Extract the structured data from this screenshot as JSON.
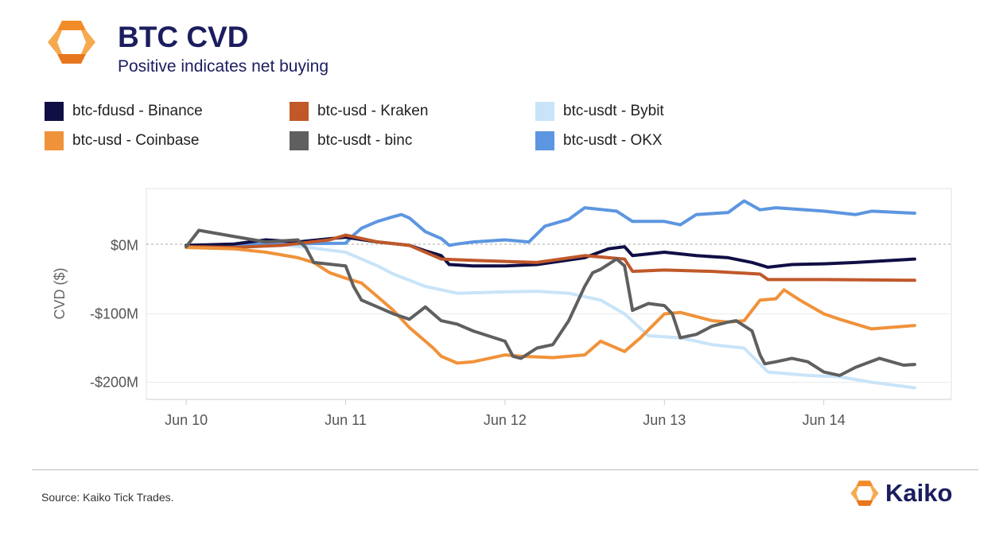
{
  "header": {
    "title": "BTC CVD",
    "subtitle": "Positive indicates net buying"
  },
  "colors": {
    "brand_orange": "#f28c28",
    "brand_navy": "#1b1d5e",
    "zero_line": "#aaaaaa",
    "grid": "#ececec"
  },
  "legend": [
    {
      "label": "btc-fdusd - Binance",
      "color": "#0f0e45"
    },
    {
      "label": "btc-usd - Kraken",
      "color": "#c0582a"
    },
    {
      "label": "btc-usdt - Bybit",
      "color": "#c9e4f8"
    },
    {
      "label": "btc-usd - Coinbase",
      "color": "#f0923a"
    },
    {
      "label": "btc-usdt - binc",
      "color": "#5f5f5f"
    },
    {
      "label": "btc-usdt - OKX",
      "color": "#5d96e0"
    }
  ],
  "chart_data": {
    "type": "line",
    "title": "BTC CVD",
    "subtitle": "Positive indicates net buying",
    "xlabel": "",
    "ylabel": "CVD ($)",
    "x_tick_labels": [
      "Jun 10",
      "Jun 11",
      "Jun 12",
      "Jun 13",
      "Jun 14"
    ],
    "x_tick_values": [
      0,
      1,
      2,
      3,
      4
    ],
    "y_tick_labels": [
      "$0M",
      "-$100M",
      "-$200M"
    ],
    "y_tick_values": [
      0,
      -100,
      -200
    ],
    "xlim": [
      -0.25,
      4.8
    ],
    "ylim": [
      -225,
      83
    ],
    "zero_line": "dashed",
    "grid": "horizontal",
    "units": "USD millions",
    "x_axis": "days from Jun 10",
    "series": [
      {
        "name": "btc-usdt - Bybit",
        "color": "#c9e4f8",
        "x": [
          0,
          0.2,
          0.4,
          0.6,
          0.8,
          1.0,
          1.2,
          1.3,
          1.5,
          1.7,
          2.0,
          2.2,
          2.4,
          2.6,
          2.75,
          2.9,
          3.1,
          3.3,
          3.5,
          3.65,
          3.9,
          4.1,
          4.3,
          4.57
        ],
        "y": [
          -3,
          0,
          3,
          1,
          -4,
          -10,
          -30,
          -42,
          -60,
          -70,
          -68,
          -67,
          -70,
          -80,
          -100,
          -132,
          -135,
          -145,
          -150,
          -185,
          -190,
          -192,
          -200,
          -208
        ]
      },
      {
        "name": "btc-usdt - OKX",
        "color": "#5d96e0",
        "x": [
          0,
          0.5,
          1.0,
          1.05,
          1.1,
          1.2,
          1.3,
          1.35,
          1.4,
          1.5,
          1.6,
          1.65,
          1.7,
          1.8,
          2.0,
          2.15,
          2.25,
          2.4,
          2.5,
          2.7,
          2.8,
          3.0,
          3.1,
          3.2,
          3.4,
          3.5,
          3.6,
          3.7,
          4.0,
          4.2,
          4.3,
          4.57
        ],
        "y": [
          -2,
          2,
          3,
          15,
          25,
          35,
          42,
          45,
          40,
          20,
          10,
          0,
          2,
          5,
          8,
          5,
          28,
          38,
          55,
          50,
          35,
          35,
          30,
          45,
          48,
          65,
          52,
          55,
          50,
          45,
          50,
          47
        ]
      },
      {
        "name": "btc-fdusd - Binance",
        "color": "#0f0e45",
        "x": [
          0,
          0.3,
          0.5,
          0.7,
          1.0,
          1.2,
          1.4,
          1.5,
          1.6,
          1.65,
          1.8,
          2.0,
          2.2,
          2.5,
          2.65,
          2.75,
          2.8,
          3.0,
          3.2,
          3.4,
          3.55,
          3.65,
          3.8,
          4.0,
          4.2,
          4.57
        ],
        "y": [
          0,
          2,
          8,
          5,
          12,
          5,
          0,
          -8,
          -15,
          -28,
          -30,
          -30,
          -28,
          -18,
          -5,
          -2,
          -15,
          -10,
          -15,
          -18,
          -25,
          -32,
          -28,
          -27,
          -25,
          -20
        ]
      },
      {
        "name": "btc-usd - Kraken",
        "color": "#c0582a",
        "x": [
          0,
          0.3,
          0.6,
          0.9,
          1.0,
          1.2,
          1.4,
          1.6,
          1.8,
          2.2,
          2.5,
          2.75,
          2.8,
          3.0,
          3.3,
          3.6,
          3.65,
          4.0,
          4.57
        ],
        "y": [
          -2,
          -3,
          0,
          8,
          15,
          5,
          0,
          -20,
          -22,
          -25,
          -15,
          -20,
          -38,
          -36,
          -38,
          -42,
          -50,
          -50,
          -51
        ]
      },
      {
        "name": "btc-usd - Coinbase",
        "color": "#f0923a",
        "x": [
          0,
          0.3,
          0.5,
          0.7,
          0.8,
          0.9,
          1.0,
          1.1,
          1.2,
          1.3,
          1.4,
          1.5,
          1.55,
          1.6,
          1.7,
          1.8,
          1.9,
          2.0,
          2.1,
          2.3,
          2.5,
          2.6,
          2.75,
          2.85,
          3.0,
          3.1,
          3.3,
          3.4,
          3.5,
          3.6,
          3.7,
          3.75,
          3.85,
          4.0,
          4.1,
          4.3,
          4.57
        ],
        "y": [
          -3,
          -5,
          -10,
          -18,
          -25,
          -40,
          -48,
          -55,
          -75,
          -95,
          -120,
          -140,
          -150,
          -162,
          -172,
          -170,
          -165,
          -160,
          -162,
          -164,
          -160,
          -140,
          -155,
          -135,
          -100,
          -98,
          -110,
          -112,
          -110,
          -80,
          -78,
          -65,
          -80,
          -100,
          -108,
          -122,
          -117
        ]
      },
      {
        "name": "btc-usdt - binc",
        "color": "#5f5f5f",
        "x": [
          0,
          0.08,
          0.25,
          0.5,
          0.7,
          0.75,
          0.8,
          1.0,
          1.05,
          1.1,
          1.2,
          1.3,
          1.4,
          1.5,
          1.6,
          1.7,
          1.8,
          2.0,
          2.05,
          2.1,
          2.2,
          2.3,
          2.4,
          2.5,
          2.55,
          2.6,
          2.7,
          2.75,
          2.8,
          2.9,
          3.0,
          3.05,
          3.1,
          3.2,
          3.3,
          3.4,
          3.45,
          3.55,
          3.6,
          3.63,
          3.7,
          3.8,
          3.9,
          4.0,
          4.1,
          4.2,
          4.35,
          4.5,
          4.57
        ],
        "y": [
          -2,
          22,
          15,
          5,
          8,
          -3,
          -25,
          -30,
          -60,
          -80,
          -90,
          -100,
          -108,
          -90,
          -110,
          -115,
          -125,
          -140,
          -162,
          -165,
          -150,
          -145,
          -110,
          -60,
          -40,
          -35,
          -20,
          -30,
          -95,
          -85,
          -88,
          -100,
          -135,
          -130,
          -118,
          -112,
          -110,
          -125,
          -160,
          -173,
          -170,
          -165,
          -170,
          -185,
          -190,
          -178,
          -165,
          -175,
          -174
        ]
      }
    ]
  },
  "footer": {
    "source": "Source: Kaiko Tick Trades.",
    "brand": "Kaiko"
  }
}
